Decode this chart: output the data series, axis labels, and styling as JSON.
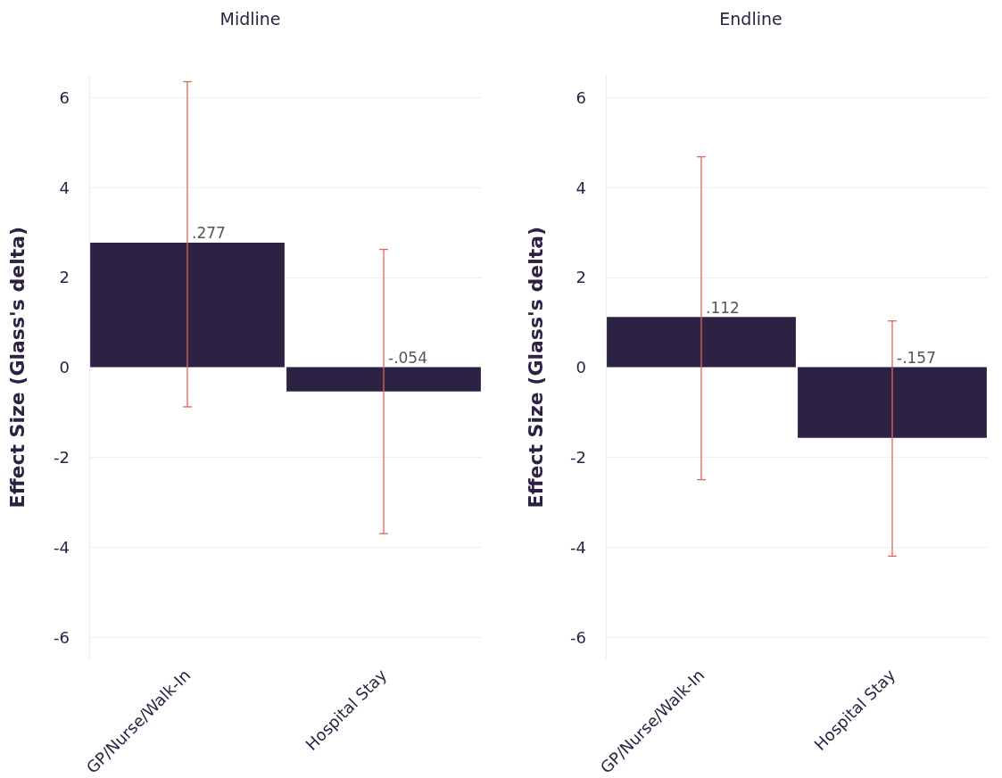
{
  "chart_data": [
    {
      "type": "bar",
      "title": "Midline",
      "ylabel": "Effect Size (Glass's delta)",
      "categories": [
        "GP/Nurse/Walk-In",
        "Hospital Stay"
      ],
      "values": [
        2.77,
        -0.54
      ],
      "errors": [
        [
          -0.88,
          6.35
        ],
        [
          -3.7,
          2.62
        ]
      ],
      "annotations": [
        {
          "text": ".277",
          "x": "GP/Nurse/Walk-In",
          "y": 2.77
        },
        {
          "text": "-.054",
          "x": "Hospital Stay",
          "y": 0
        }
      ],
      "color": "#2e2244",
      "ylim": [
        -6.5,
        6.5
      ],
      "yticks": [
        -6,
        -4,
        -2,
        0,
        2,
        4,
        6
      ],
      "grid": "y"
    },
    {
      "type": "bar",
      "title": "Endline",
      "ylabel": "Effect Size (Glass's delta)",
      "categories": [
        "GP/Nurse/Walk-In",
        "Hospital Stay"
      ],
      "values": [
        1.12,
        -1.57
      ],
      "errors": [
        [
          -2.5,
          4.68
        ],
        [
          -4.2,
          1.03
        ]
      ],
      "annotations": [
        {
          "text": ".112",
          "x": "GP/Nurse/Walk-In",
          "y": 1.12
        },
        {
          "text": "-.157",
          "x": "Hospital Stay",
          "y": 0
        }
      ],
      "color": "#2e2244",
      "ylim": [
        -6.5,
        6.5
      ],
      "yticks": [
        -6,
        -4,
        -2,
        0,
        2,
        4,
        6
      ],
      "grid": "y"
    }
  ]
}
